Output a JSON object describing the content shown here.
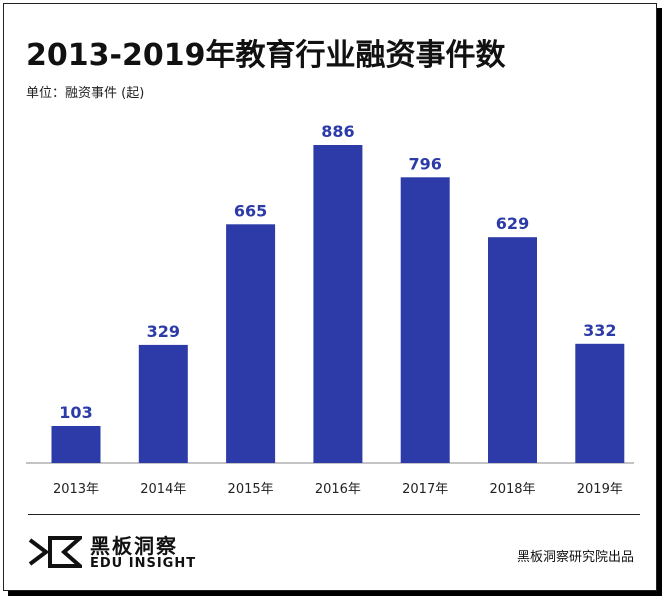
{
  "title": "2013-2019年教育行业融资事件数",
  "unit_label": "单位：融资事件 (起)",
  "brand": {
    "name_cn": "黑板洞察",
    "name_en": "EDU INSIGHT"
  },
  "credit": "黑板洞察研究院出品",
  "colors": {
    "bar": "#2c3ba8",
    "text": "#111111"
  },
  "chart_data": {
    "type": "bar",
    "categories": [
      "2013年",
      "2014年",
      "2015年",
      "2016年",
      "2017年",
      "2018年",
      "2019年"
    ],
    "values": [
      103,
      329,
      665,
      886,
      796,
      629,
      332
    ],
    "title": "2013-2019年教育行业融资事件数",
    "ylabel": "",
    "xlabel": "",
    "ylim": [
      0,
      1000
    ],
    "grid": false,
    "data_labels": true
  }
}
